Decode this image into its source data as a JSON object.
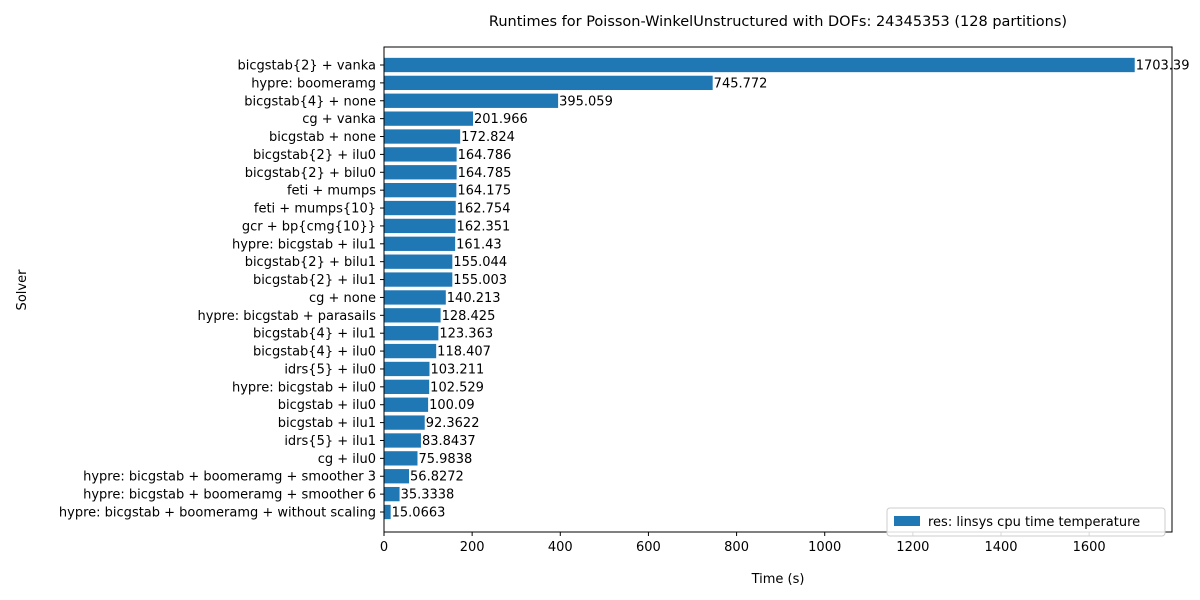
{
  "chart_data": {
    "type": "bar",
    "orientation": "horizontal",
    "title": "Runtimes for Poisson-WinkelUnstructured with DOFs: 24345353 (128 partitions)",
    "xlabel": "Time (s)",
    "ylabel": "Solver",
    "xlim": [
      0,
      1788
    ],
    "xticks": [
      0,
      200,
      400,
      600,
      800,
      1000,
      1200,
      1400,
      1600
    ],
    "grid": false,
    "legend_position": "lower-right",
    "categories": [
      "bicgstab{2} + vanka",
      "hypre: boomeramg",
      "bicgstab{4} + none",
      "cg + vanka",
      "bicgstab + none",
      "bicgstab{2} + ilu0",
      "bicgstab{2} + bilu0",
      "feti + mumps",
      "feti + mumps{10}",
      "gcr + bp{cmg{10}}",
      "hypre: bicgstab + ilu1",
      "bicgstab{2} + bilu1",
      "bicgstab{2} + ilu1",
      "cg + none",
      "hypre: bicgstab + parasails",
      "bicgstab{4} + ilu1",
      "bicgstab{4} + ilu0",
      "idrs{5} + ilu0",
      "hypre: bicgstab + ilu0",
      "bicgstab + ilu0",
      "bicgstab + ilu1",
      "idrs{5} + ilu1",
      "cg + ilu0",
      "hypre: bicgstab + boomeramg + smoother 3",
      "hypre: bicgstab + boomeramg + smoother 6",
      "hypre: bicgstab + boomeramg + without scaling"
    ],
    "series": [
      {
        "name": "res: linsys cpu time temperature",
        "color": "#1f77b4",
        "values": [
          1703.39,
          745.772,
          395.059,
          201.966,
          172.824,
          164.786,
          164.785,
          164.175,
          162.754,
          162.351,
          161.43,
          155.044,
          155.003,
          140.213,
          128.425,
          123.363,
          118.407,
          103.211,
          102.529,
          100.09,
          92.3622,
          83.8437,
          75.9838,
          56.8272,
          35.3338,
          15.0663
        ],
        "labels": [
          "1703.39",
          "745.772",
          "395.059",
          "201.966",
          "172.824",
          "164.786",
          "164.785",
          "164.175",
          "162.754",
          "162.351",
          "161.43",
          "155.044",
          "155.003",
          "140.213",
          "128.425",
          "123.363",
          "118.407",
          "103.211",
          "102.529",
          "100.09",
          "92.3622",
          "83.8437",
          "75.9838",
          "56.8272",
          "35.3338",
          "15.0663"
        ]
      }
    ]
  }
}
